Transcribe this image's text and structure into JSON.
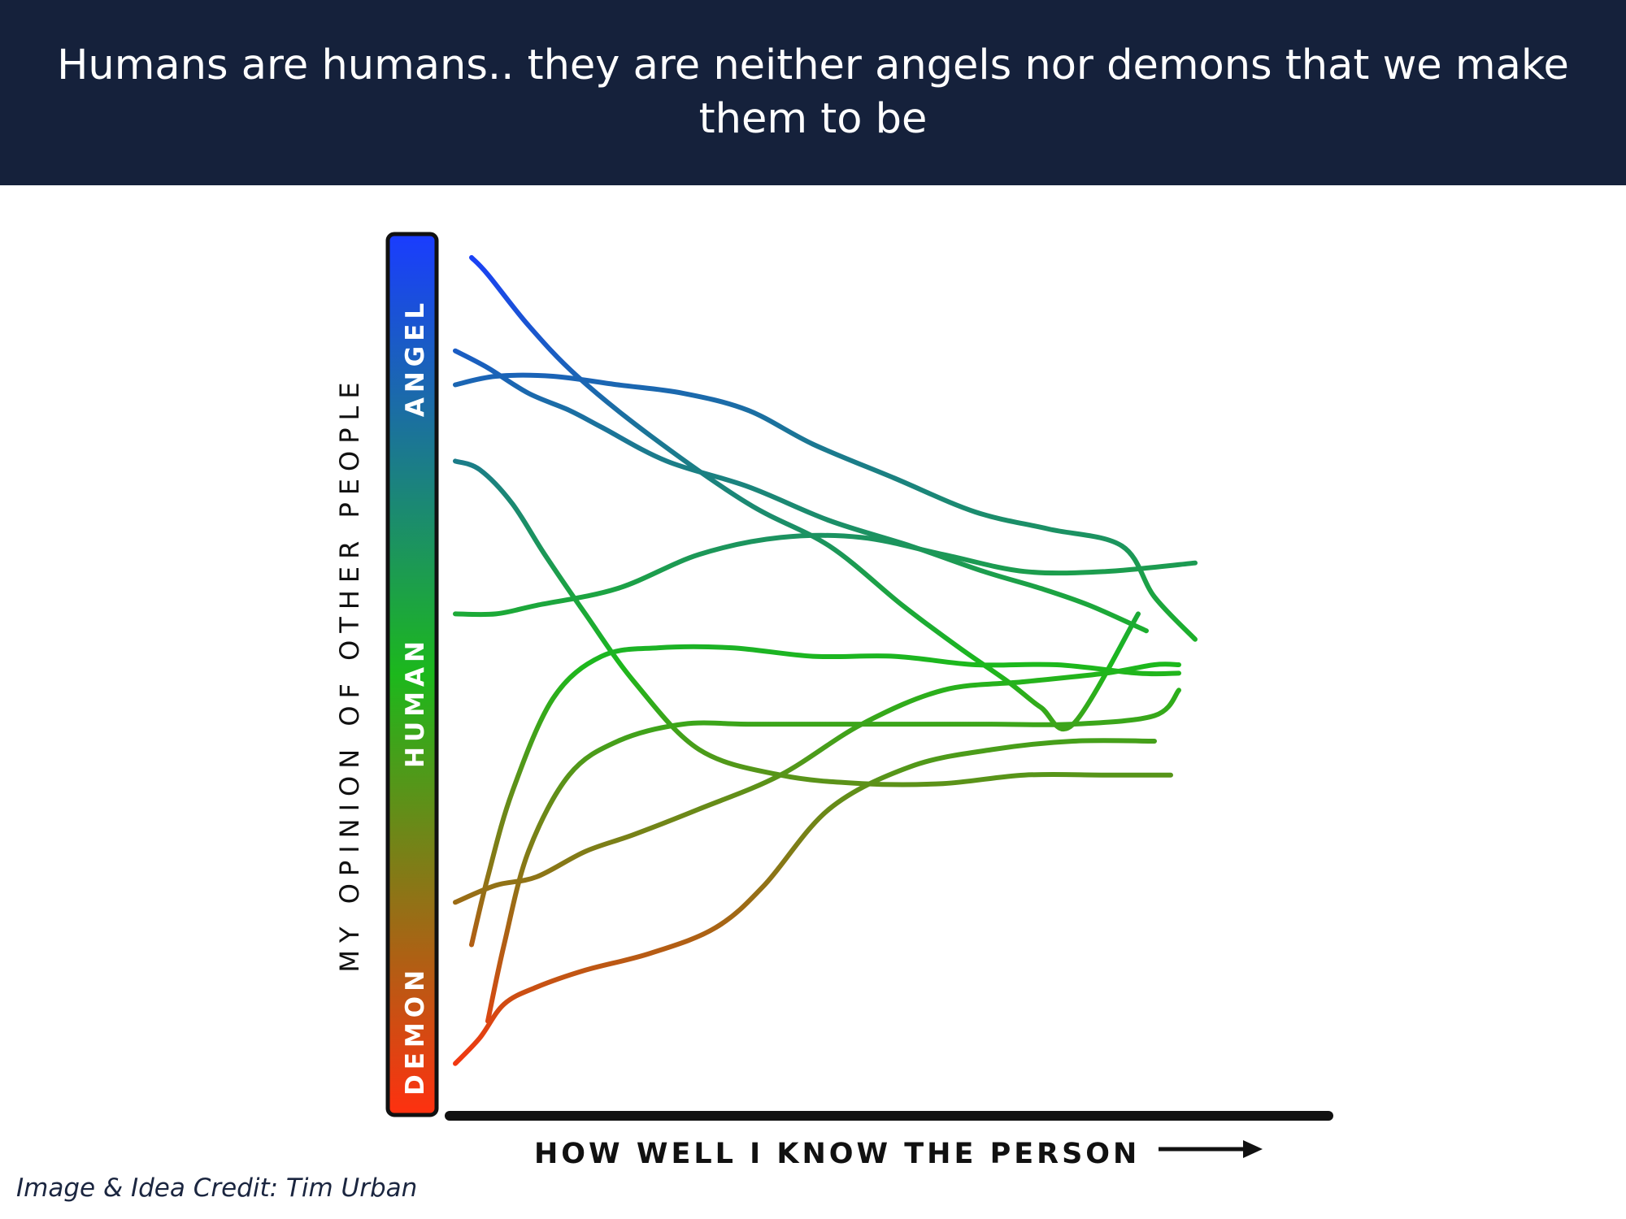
{
  "header": {
    "title": "Humans are humans.. they are neither angels nor demons that we make them to be"
  },
  "credit": "Image & Idea Credit: Tim Urban",
  "chart_data": {
    "type": "line",
    "title": "",
    "xlabel": "HOW WELL I KNOW THE PERSON",
    "ylabel": "MY OPINION OF OTHER PEOPLE",
    "xlim": [
      0,
      100
    ],
    "ylim": [
      0,
      100
    ],
    "grid": false,
    "legend": "none",
    "color_scale": {
      "labels": [
        "DEMON",
        "HUMAN",
        "ANGEL"
      ],
      "colors": [
        "#ff3010",
        "#1cb81c",
        "#1a3cff"
      ]
    },
    "series": [
      {
        "x": [
          2,
          4,
          9,
          15,
          24,
          36,
          46,
          55,
          62,
          68,
          72,
          76,
          84
        ],
        "y": [
          98,
          96,
          90,
          84,
          77,
          69,
          64,
          57,
          52,
          48,
          45,
          43,
          56
        ]
      },
      {
        "x": [
          0,
          4,
          9,
          14,
          18,
          26,
          36,
          46,
          56,
          65,
          72,
          78,
          85
        ],
        "y": [
          87,
          85,
          82,
          80,
          78,
          74,
          71,
          67,
          64,
          61,
          59,
          57,
          54
        ]
      },
      {
        "x": [
          0,
          5,
          12,
          20,
          28,
          36,
          44,
          54,
          64,
          73,
          82,
          86,
          91
        ],
        "y": [
          83,
          84,
          84,
          83,
          82,
          80,
          76,
          72,
          68,
          66,
          64,
          58,
          53
        ]
      },
      {
        "x": [
          0,
          3,
          7,
          11,
          16,
          22,
          30,
          40,
          50,
          60,
          70,
          80,
          88
        ],
        "y": [
          74,
          73,
          69,
          63,
          56,
          48,
          40,
          37,
          36,
          36,
          37,
          37,
          37
        ]
      },
      {
        "x": [
          0,
          5,
          10,
          20,
          30,
          40,
          50,
          60,
          70,
          80,
          91
        ],
        "y": [
          56,
          56,
          57,
          59,
          63,
          65,
          65,
          63,
          61,
          61,
          62
        ]
      },
      {
        "x": [
          2,
          4,
          7,
          12,
          18,
          25,
          34,
          44,
          54,
          64,
          74,
          84,
          89
        ],
        "y": [
          17,
          25,
          35,
          46,
          51,
          52,
          52,
          51,
          51,
          50,
          50,
          49,
          49
        ]
      },
      {
        "x": [
          4,
          6,
          9,
          14,
          20,
          28,
          36,
          46,
          56,
          66,
          76,
          86,
          89
        ],
        "y": [
          8,
          17,
          28,
          37,
          41,
          43,
          43,
          43,
          43,
          43,
          43,
          44,
          47
        ]
      },
      {
        "x": [
          0,
          5,
          10,
          16,
          22,
          30,
          40,
          50,
          60,
          70,
          80,
          86,
          89
        ],
        "y": [
          22,
          24,
          25,
          28,
          30,
          33,
          37,
          43,
          47,
          48,
          49,
          50,
          50
        ]
      },
      {
        "x": [
          0,
          3,
          6,
          10,
          16,
          24,
          32,
          38,
          46,
          56,
          66,
          76,
          86
        ],
        "y": [
          3,
          6,
          10,
          12,
          14,
          16,
          19,
          24,
          33,
          38,
          40,
          41,
          41
        ]
      }
    ]
  }
}
